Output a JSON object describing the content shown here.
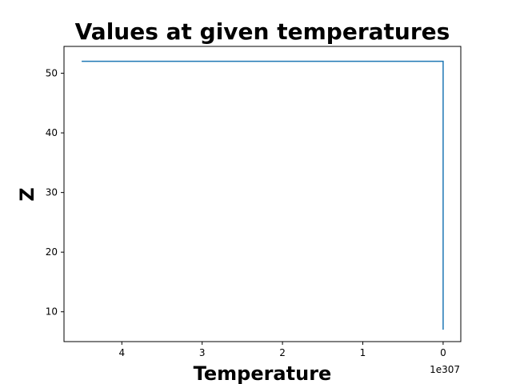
{
  "chart_data": {
    "type": "line",
    "title": "Values at given temperatures",
    "xlabel": "Temperature",
    "ylabel": "Z",
    "x_offset_text": "1e307",
    "x_axis_inverted": true,
    "xlim": [
      4.72,
      -0.22
    ],
    "ylim": [
      5,
      54.5
    ],
    "x_ticks": [
      4,
      3,
      2,
      1,
      0
    ],
    "x_tick_labels": [
      "4",
      "3",
      "2",
      "1",
      "0"
    ],
    "y_ticks": [
      10,
      20,
      30,
      40,
      50
    ],
    "y_tick_labels": [
      "10",
      "20",
      "30",
      "40",
      "50"
    ],
    "grid": false,
    "series": [
      {
        "color": "#1f77b4",
        "x": [
          4.5,
          0.0,
          0.0
        ],
        "y": [
          52,
          52,
          7
        ]
      }
    ]
  }
}
